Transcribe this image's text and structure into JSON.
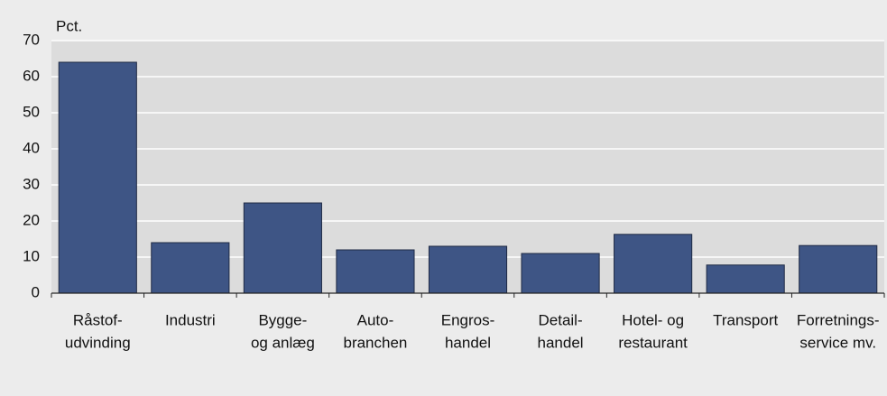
{
  "chart_data": {
    "type": "bar",
    "unit_label": "Pct.",
    "categories": [
      [
        "Råstof-",
        "udvinding"
      ],
      [
        "Industri"
      ],
      [
        "Bygge-",
        "og anlæg"
      ],
      [
        "Auto-",
        "branchen"
      ],
      [
        "Engros-",
        "handel"
      ],
      [
        "Detail-",
        "handel"
      ],
      [
        "Hotel- og",
        "restaurant"
      ],
      [
        "Transport"
      ],
      [
        "Forretnings-",
        "service mv."
      ]
    ],
    "values": [
      64,
      14,
      25,
      12,
      13,
      11,
      16.3,
      7.8,
      13.2
    ],
    "color": "#3e5585",
    "ylim": [
      0,
      70
    ],
    "yticks": [
      0,
      10,
      20,
      30,
      40,
      50,
      60,
      70
    ],
    "grid": true
  }
}
